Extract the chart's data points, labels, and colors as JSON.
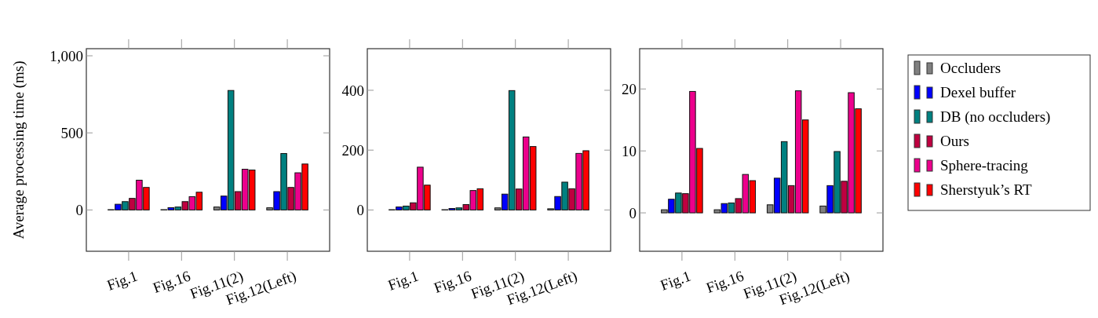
{
  "chart_data": [
    {
      "type": "bar",
      "ylabel": "Average processing time (ms)",
      "categories": [
        "Fig.1",
        "Fig.16",
        "Fig.11(2)",
        "Fig.12(Left)"
      ],
      "ylim": [
        -268,
        1046
      ],
      "yticks": [
        0,
        500,
        {
          "value": 1000,
          "label": "1,000"
        }
      ],
      "series": [
        {
          "color": "#808080",
          "values": [
            2,
            2,
            19,
            14
          ]
        },
        {
          "color": "#0000ff",
          "values": [
            37,
            15,
            90,
            119
          ]
        },
        {
          "color": "#008080",
          "values": [
            54,
            19,
            775,
            366
          ]
        },
        {
          "color": "#bf0040",
          "values": [
            75,
            54,
            119,
            146
          ]
        },
        {
          "color": "#ec008c",
          "values": [
            193,
            86,
            264,
            241
          ]
        },
        {
          "color": "#ff0000",
          "values": [
            146,
            115,
            259,
            298
          ]
        }
      ]
    },
    {
      "type": "bar",
      "categories": [
        "Fig.1",
        "Fig.16",
        "Fig.11(2)",
        "Fig.12(Left)"
      ],
      "ylim": [
        -138,
        539
      ],
      "yticks": [
        0,
        200,
        400
      ],
      "series": [
        {
          "color": "#808080",
          "values": [
            1,
            1,
            7,
            4
          ]
        },
        {
          "color": "#0000ff",
          "values": [
            10,
            5,
            53,
            45
          ]
        },
        {
          "color": "#008080",
          "values": [
            13,
            7,
            399,
            93
          ]
        },
        {
          "color": "#bf0040",
          "values": [
            24,
            18,
            70,
            71
          ]
        },
        {
          "color": "#ec008c",
          "values": [
            143,
            65,
            244,
            189
          ]
        },
        {
          "color": "#ff0000",
          "values": [
            83,
            71,
            212,
            198
          ]
        }
      ]
    },
    {
      "type": "bar",
      "legend": "right",
      "categories": [
        "Fig.1",
        "Fig.16",
        "Fig.11(2)",
        "Fig.12(Left)"
      ],
      "ylim": [
        -6.2,
        26.5
      ],
      "yticks": [
        0,
        10,
        20
      ],
      "series": [
        {
          "name": "Occluders",
          "color": "#808080",
          "values": [
            0.5,
            0.5,
            1.3,
            1.1
          ]
        },
        {
          "name": "Dexel buffer",
          "color": "#0000ff",
          "values": [
            2.2,
            1.5,
            5.6,
            4.4
          ]
        },
        {
          "name": "DB (no occluders)",
          "color": "#008080",
          "values": [
            3.2,
            1.6,
            11.5,
            9.9
          ]
        },
        {
          "name": "Ours",
          "color": "#bf0040",
          "values": [
            3.1,
            2.3,
            4.4,
            5.1
          ]
        },
        {
          "name": "Sphere-tracing",
          "color": "#ec008c",
          "values": [
            19.6,
            6.2,
            19.7,
            19.4
          ]
        },
        {
          "name": "Sherstyuk’s RT",
          "color": "#ff0000",
          "values": [
            10.4,
            5.2,
            15,
            16.8
          ]
        }
      ]
    }
  ]
}
